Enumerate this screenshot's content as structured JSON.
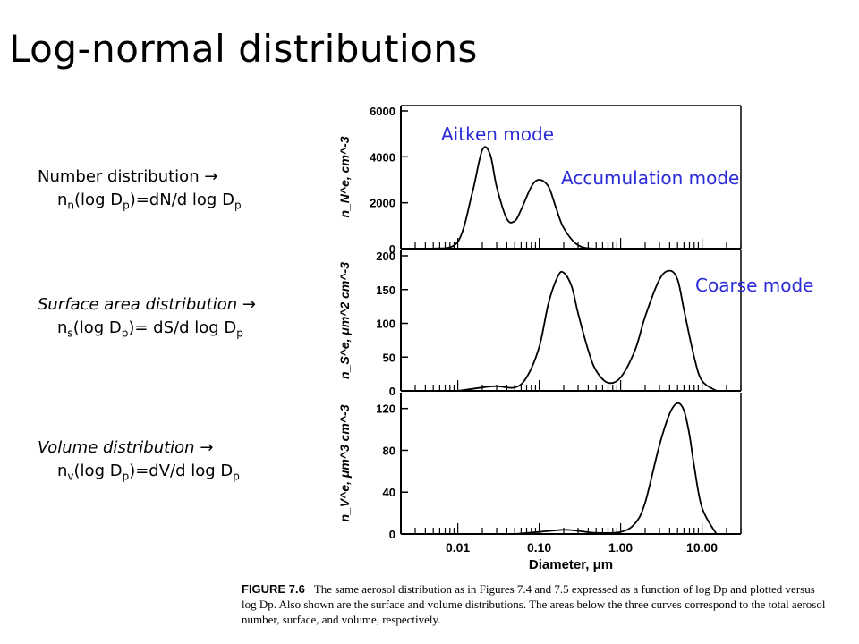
{
  "slide": {
    "title": "Log-normal distributions",
    "distributions": [
      {
        "label": "Number distribution",
        "formula_prefix": "n",
        "sub": "n",
        "formula_rest": "(log D",
        "formula_sub": "p",
        "formula_end": ")=dN/d log D",
        "formula_end_sub": "p"
      },
      {
        "label": "Surface area distribution",
        "formula_prefix": "n",
        "sub": "s",
        "formula_rest": "(log D",
        "formula_sub": "p",
        "formula_end": ")= dS/d log D",
        "formula_end_sub": "p"
      },
      {
        "label": "Volume distribution",
        "formula_prefix": "n",
        "sub": "v",
        "formula_rest": "(log D",
        "formula_sub": "p",
        "formula_end": ")=dV/d log D",
        "formula_end_sub": "p"
      }
    ],
    "arrow": "→",
    "modes": {
      "aitken": "Aitken mode",
      "accumulation": "Accumulation mode",
      "coarse": "Coarse mode",
      "color": "#2a2ad8"
    },
    "caption": {
      "figure": "FIGURE 7.6",
      "text": "The same aerosol distribution as in Figures 7.4 and 7.5 expressed as a function of log Dp and plotted versus log Dp. Also shown are the surface and volume distributions. The areas below the three curves correspond to the total aerosol number, surface, and volume, respectively."
    }
  },
  "chart_data": [
    {
      "type": "line",
      "ylabel": "n_N^e, cm^-3",
      "x_scale": "log",
      "xlim": [
        0.002,
        30
      ],
      "ylim": [
        0,
        6000
      ],
      "yticks": [
        0,
        2000,
        4000,
        6000
      ],
      "y_tick_labels": [
        "0",
        "2000",
        "4000",
        "6000"
      ],
      "x": [
        0.005,
        0.01,
        0.015,
        0.02,
        0.025,
        0.03,
        0.04,
        0.05,
        0.06,
        0.08,
        0.1,
        0.13,
        0.16,
        0.2,
        0.3,
        0.5,
        1.0
      ],
      "y": [
        0,
        300,
        2400,
        4300,
        4100,
        2700,
        1300,
        1200,
        1700,
        2700,
        3000,
        2700,
        1800,
        900,
        150,
        0,
        0
      ]
    },
    {
      "type": "line",
      "ylabel": "n_S^e, μm^2 cm^-3",
      "x_scale": "log",
      "xlim": [
        0.002,
        30
      ],
      "ylim": [
        0,
        200
      ],
      "yticks": [
        0,
        50,
        100,
        150,
        200
      ],
      "y_tick_labels": [
        "0",
        "50",
        "100",
        "150",
        "200"
      ],
      "x": [
        0.01,
        0.02,
        0.03,
        0.05,
        0.07,
        0.1,
        0.13,
        0.17,
        0.2,
        0.25,
        0.3,
        0.4,
        0.5,
        0.7,
        1.0,
        1.5,
        2.0,
        3.0,
        4.0,
        5.0,
        6.0,
        8.0,
        10.0,
        15.0
      ],
      "y": [
        0,
        5,
        7,
        5,
        20,
        65,
        130,
        170,
        175,
        155,
        115,
        60,
        30,
        12,
        20,
        60,
        110,
        165,
        178,
        165,
        120,
        50,
        15,
        0
      ]
    },
    {
      "type": "line",
      "ylabel": "n_V^e, μm^3 cm^-3",
      "xlabel": "Diameter, μm",
      "x_scale": "log",
      "xlim": [
        0.002,
        30
      ],
      "ylim": [
        0,
        130
      ],
      "yticks": [
        0,
        40,
        80,
        120
      ],
      "y_tick_labels": [
        "0",
        "40",
        "80",
        "120"
      ],
      "xticks": [
        0.01,
        0.1,
        1,
        10
      ],
      "x_tick_labels": [
        "0.01",
        "0.10",
        "1.00",
        "10.00"
      ],
      "x": [
        0.05,
        0.1,
        0.2,
        0.3,
        0.5,
        1.0,
        1.5,
        2.0,
        3.0,
        4.0,
        5.0,
        6.0,
        7.0,
        8.0,
        10.0,
        15.0
      ],
      "y": [
        0,
        2,
        4,
        3,
        1,
        2,
        10,
        30,
        85,
        115,
        125,
        118,
        95,
        65,
        25,
        0
      ]
    }
  ]
}
